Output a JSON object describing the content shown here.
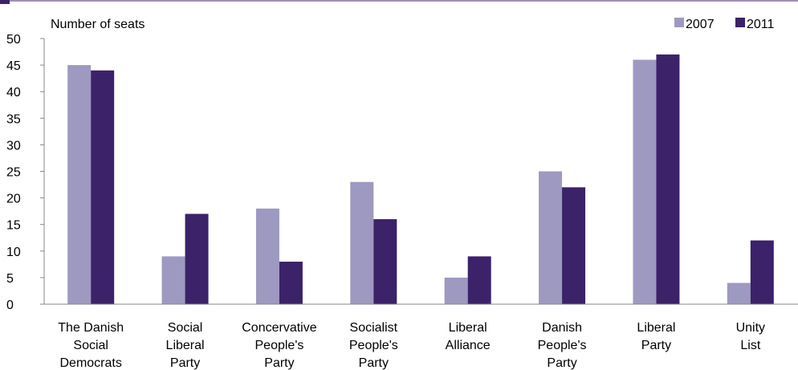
{
  "chart_data": {
    "type": "bar",
    "ylabel": "Number of seats",
    "xlabel": "",
    "ylim": [
      0,
      50
    ],
    "yticks": [
      0,
      5,
      10,
      15,
      20,
      25,
      30,
      35,
      40,
      45,
      50
    ],
    "grid": false,
    "legend_position": "top-right",
    "categories": [
      [
        "The Danish",
        "Social",
        "Democrats"
      ],
      [
        "Social",
        "Liberal",
        "Party"
      ],
      [
        "Concervative",
        "People's",
        "Party"
      ],
      [
        "Socialist",
        "People's",
        "Party"
      ],
      [
        "Liberal",
        "Alliance"
      ],
      [
        "Danish",
        "People's",
        "Party"
      ],
      [
        "Liberal",
        "Party"
      ],
      [
        "Unity",
        "List"
      ]
    ],
    "series": [
      {
        "name": "2007",
        "color": "#9e99c0",
        "values": [
          45,
          9,
          18,
          23,
          5,
          25,
          46,
          4
        ]
      },
      {
        "name": "2011",
        "color": "#3b2269",
        "values": [
          44,
          17,
          8,
          16,
          9,
          22,
          47,
          12
        ]
      }
    ]
  },
  "colors": {
    "axis": "#888888",
    "corner_accent": "#3b2269"
  }
}
